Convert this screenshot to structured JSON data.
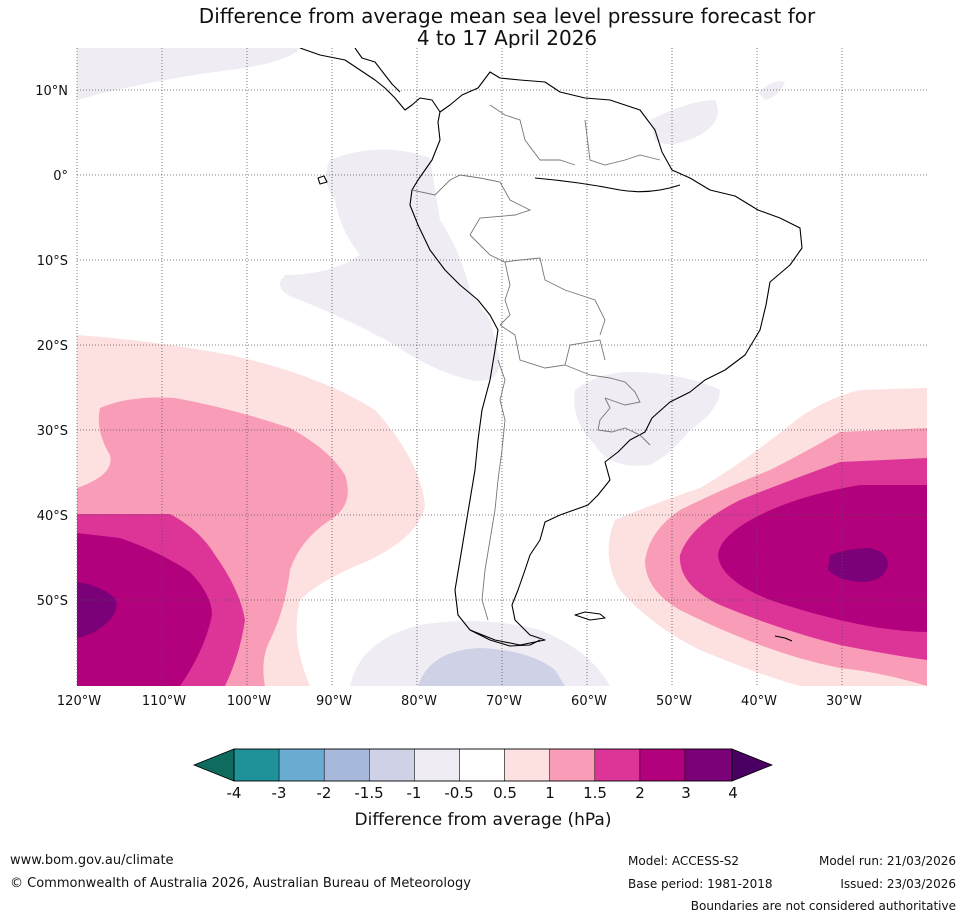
{
  "title": {
    "line1": "Difference from average mean sea level pressure forecast for",
    "line2": "4 to 17 April 2026"
  },
  "axes": {
    "lat_labels": [
      "10°N",
      "0°",
      "10°S",
      "20°S",
      "30°S",
      "40°S",
      "50°S"
    ],
    "lon_labels": [
      "120°W",
      "110°W",
      "100°W",
      "90°W",
      "80°W",
      "70°W",
      "60°W",
      "50°W",
      "40°W",
      "30°W"
    ]
  },
  "colorbar": {
    "ticks": [
      "-4",
      "-3",
      "-2",
      "-1.5",
      "-1",
      "-0.5",
      "0.5",
      "1",
      "1.5",
      "2",
      "3",
      "4"
    ],
    "label": "Difference from average (hPa)",
    "colors": {
      "below": "#0e6b5d",
      "bins": [
        "#1f9199",
        "#6aabd2",
        "#a6b9da",
        "#cfd1e6",
        "#f0ecf3",
        "#ffffff",
        "#fde0e0",
        "#f99cb8",
        "#dd3597",
        "#b3007d",
        "#7a0177"
      ],
      "above": "#4a0063"
    }
  },
  "footer": {
    "url": "www.bom.gov.au/climate",
    "copyright": "© Commonwealth of Australia 2026, Australian Bureau of Meteorology",
    "model": "Model: ACCESS-S2",
    "base_period": "Base period: 1981-2018",
    "model_run": "Model run: 21/03/2026",
    "issued": "Issued: 23/03/2026",
    "disclaimer": "Boundaries are not considered authoritative"
  }
}
